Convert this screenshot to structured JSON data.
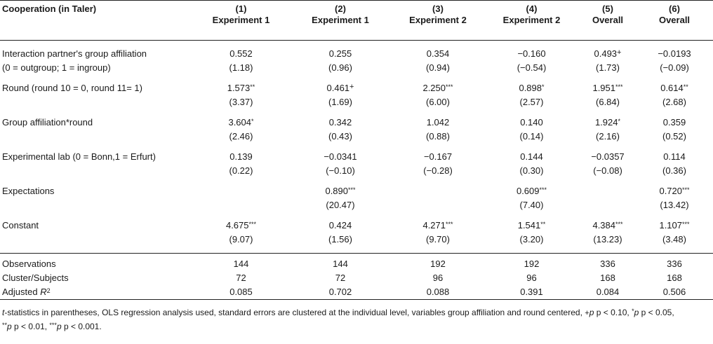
{
  "header": {
    "title": "Cooperation (in Taler)",
    "columns": [
      {
        "num": "(1)",
        "label": "Experiment 1"
      },
      {
        "num": "(2)",
        "label": "Experiment 1"
      },
      {
        "num": "(3)",
        "label": "Experiment 2"
      },
      {
        "num": "(4)",
        "label": "Experiment 2"
      },
      {
        "num": "(5)",
        "label": "Overall"
      },
      {
        "num": "(6)",
        "label": "Overall"
      }
    ]
  },
  "rows": [
    {
      "label": "Interaction partner's group affiliation",
      "label2": "(0 = outgroup; 1 = ingroup)",
      "coef": [
        "0.552",
        "0.255",
        "0.354",
        "−0.160",
        "0.493",
        "−0.0193"
      ],
      "sig": [
        "",
        "",
        "",
        "",
        "+",
        ""
      ],
      "t": [
        "(1.18)",
        "(0.96)",
        "(0.94)",
        "(−0.54)",
        "(1.73)",
        "(−0.09)"
      ]
    },
    {
      "label": "Round (round 10 = 0, round 11= 1)",
      "label2": "",
      "coef": [
        "1.573",
        "0.461",
        "2.250",
        "0.898",
        "1.951",
        "0.614"
      ],
      "sig": [
        "**",
        "+",
        "***",
        "*",
        "***",
        "**"
      ],
      "t": [
        "(3.37)",
        "(1.69)",
        "(6.00)",
        "(2.57)",
        "(6.84)",
        "(2.68)"
      ]
    },
    {
      "label": "Group affiliation*round",
      "label2": "",
      "coef": [
        "3.604",
        "0.342",
        "1.042",
        "0.140",
        "1.924",
        "0.359"
      ],
      "sig": [
        "*",
        "",
        "",
        "",
        "*",
        ""
      ],
      "t": [
        "(2.46)",
        "(0.43)",
        "(0.88)",
        "(0.14)",
        "(2.16)",
        "(0.52)"
      ]
    },
    {
      "label": "Experimental lab (0 = Bonn,1 = Erfurt)",
      "label2": "",
      "coef": [
        "0.139",
        "−0.0341",
        "−0.167",
        "0.144",
        "−0.0357",
        "0.114"
      ],
      "sig": [
        "",
        "",
        "",
        "",
        "",
        ""
      ],
      "t": [
        "(0.22)",
        "(−0.10)",
        "(−0.28)",
        "(0.30)",
        "(−0.08)",
        "(0.36)"
      ]
    },
    {
      "label": "Expectations",
      "label2": "",
      "coef": [
        "",
        "0.890",
        "",
        "0.609",
        "",
        "0.720"
      ],
      "sig": [
        "",
        "***",
        "",
        "***",
        "",
        "***"
      ],
      "t": [
        "",
        "(20.47)",
        "",
        "(7.40)",
        "",
        "(13.42)"
      ]
    },
    {
      "label": "Constant",
      "label2": "",
      "coef": [
        "4.675",
        "0.424",
        "4.271",
        "1.541",
        "4.384",
        "1.107"
      ],
      "sig": [
        "***",
        "",
        "***",
        "**",
        "***",
        "***"
      ],
      "t": [
        "(9.07)",
        "(1.56)",
        "(9.70)",
        "(3.20)",
        "(13.23)",
        "(3.48)"
      ]
    }
  ],
  "stats": [
    {
      "label": "Observations",
      "values": [
        "144",
        "144",
        "192",
        "192",
        "336",
        "336"
      ]
    },
    {
      "label": "Cluster/Subjects",
      "values": [
        "72",
        "72",
        "96",
        "96",
        "168",
        "168"
      ]
    },
    {
      "label": "Adjusted R",
      "sup": "2",
      "values": [
        "0.085",
        "0.702",
        "0.088",
        "0.391",
        "0.084",
        "0.506"
      ]
    }
  ],
  "footnote": {
    "tstat": "t",
    "line1": "-statistics in parentheses, OLS regression analysis used, standard errors are clustered at the individual level, variables group affiliation and round centered, ",
    "p1": "p < 0.10, ",
    "p2": "p < 0.05,",
    "p3": "p < 0.01, ",
    "p4": "p < 0.001.",
    "plus": "+",
    "s1": "*",
    "s2": "**",
    "s3": "***",
    "p": "p"
  }
}
